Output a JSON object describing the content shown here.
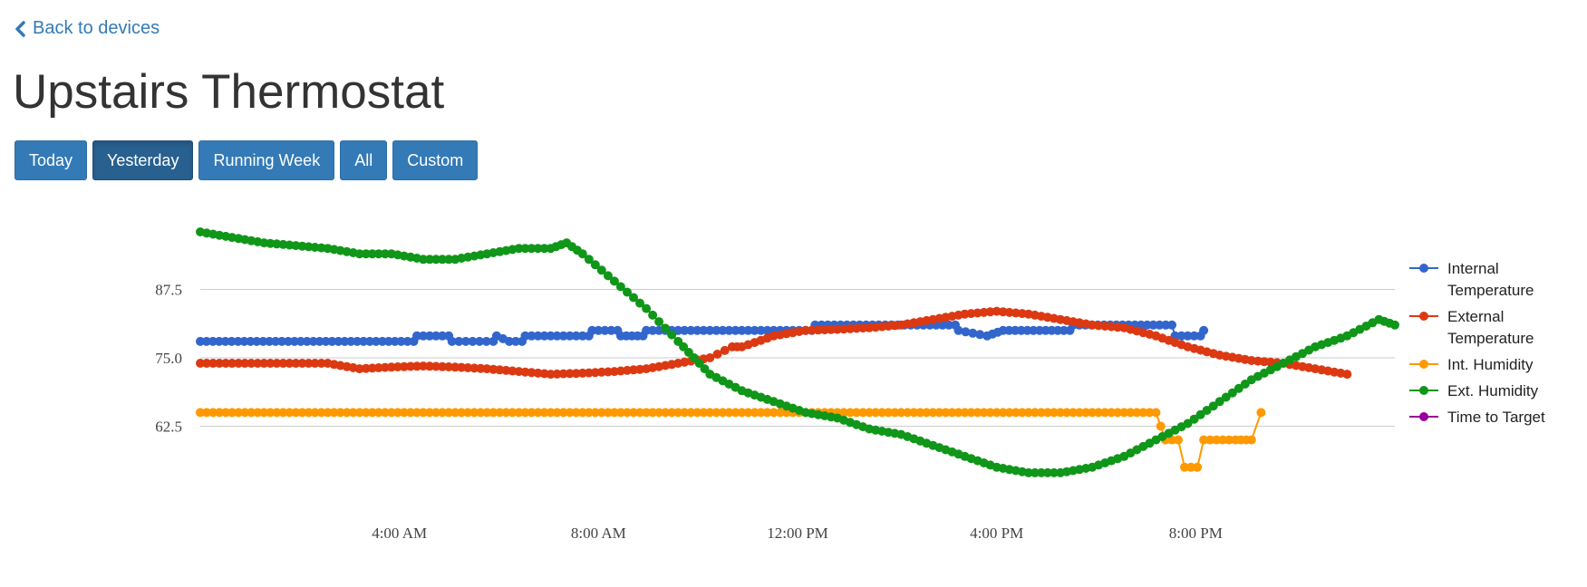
{
  "nav": {
    "back_label": "Back to devices"
  },
  "page": {
    "title": "Upstairs Thermostat"
  },
  "range_buttons": [
    {
      "label": "Today",
      "active": false
    },
    {
      "label": "Yesterday",
      "active": true
    },
    {
      "label": "Running Week",
      "active": false
    },
    {
      "label": "All",
      "active": false
    },
    {
      "label": "Custom",
      "active": false
    }
  ],
  "chart_data": {
    "type": "line",
    "title": "",
    "xlabel": "",
    "ylabel": "",
    "x_range_hours": [
      0,
      24
    ],
    "xticks": [
      {
        "hour": 4,
        "label": "4:00 AM"
      },
      {
        "hour": 8,
        "label": "8:00 AM"
      },
      {
        "hour": 12,
        "label": "12:00 PM"
      },
      {
        "hour": 16,
        "label": "4:00 PM"
      },
      {
        "hour": 20,
        "label": "8:00 PM"
      }
    ],
    "yticks": [
      {
        "value": 62.5,
        "label": "62.5"
      },
      {
        "value": 75,
        "label": "75.0"
      },
      {
        "value": 87.5,
        "label": "87.5"
      }
    ],
    "ylim": [
      51,
      99
    ],
    "grid": true,
    "legend_position": "right",
    "series": [
      {
        "name": "Internal Temperature",
        "color": "#3366cc",
        "points": [
          [
            0,
            78
          ],
          [
            6.7,
            78
          ],
          [
            6.8,
            79
          ],
          [
            7.8,
            79
          ],
          [
            7.9,
            78
          ],
          [
            9.2,
            78
          ],
          [
            9.3,
            79
          ],
          [
            9.7,
            78
          ],
          [
            10.1,
            78
          ],
          [
            10.2,
            79
          ],
          [
            12.2,
            79
          ],
          [
            12.3,
            80
          ],
          [
            13.1,
            80
          ],
          [
            13.2,
            79
          ],
          [
            13.9,
            79
          ],
          [
            14.0,
            80
          ],
          [
            19.2,
            80
          ],
          [
            19.3,
            81
          ],
          [
            23.7,
            81
          ],
          [
            23.8,
            80
          ],
          [
            24.7,
            79
          ],
          [
            25.2,
            80
          ],
          [
            27.3,
            80
          ],
          [
            27.4,
            81
          ],
          [
            30.5,
            81
          ],
          [
            30.6,
            79
          ],
          [
            31.4,
            79
          ],
          [
            31.5,
            80
          ]
        ]
      },
      {
        "name": "External Temperature",
        "color": "#dc3912",
        "points": [
          [
            0,
            74
          ],
          [
            4,
            74
          ],
          [
            5,
            73
          ],
          [
            6,
            73.3
          ],
          [
            7,
            73.5
          ],
          [
            8,
            73.3
          ],
          [
            9,
            73
          ],
          [
            10,
            72.5
          ],
          [
            11,
            72
          ],
          [
            12,
            72.2
          ],
          [
            13,
            72.5
          ],
          [
            14,
            73
          ],
          [
            15,
            74
          ],
          [
            16,
            75
          ],
          [
            16.7,
            77
          ],
          [
            17,
            77
          ],
          [
            18,
            79
          ],
          [
            19,
            80
          ],
          [
            20,
            80.2
          ],
          [
            21,
            80.5
          ],
          [
            22,
            81
          ],
          [
            23,
            82
          ],
          [
            24,
            83
          ],
          [
            25,
            83.5
          ],
          [
            26,
            83
          ],
          [
            27,
            82
          ],
          [
            28,
            81
          ],
          [
            29,
            80.5
          ],
          [
            30,
            79
          ],
          [
            31,
            77
          ],
          [
            32,
            75.5
          ],
          [
            33,
            74.5
          ],
          [
            34,
            74
          ],
          [
            35,
            73
          ],
          [
            36,
            72
          ]
        ]
      },
      {
        "name": "Int. Humidity",
        "color": "#ff9900",
        "points": [
          [
            0,
            65
          ],
          [
            30,
            65
          ],
          [
            30.3,
            60
          ],
          [
            30.7,
            60
          ],
          [
            30.9,
            55
          ],
          [
            31.3,
            55
          ],
          [
            31.5,
            60
          ],
          [
            32.5,
            60
          ],
          [
            33,
            60
          ],
          [
            33.3,
            65
          ]
        ]
      },
      {
        "name": "Ext. Humidity",
        "color": "#109618",
        "points": [
          [
            0,
            98
          ],
          [
            1,
            97
          ],
          [
            2,
            96
          ],
          [
            3,
            95.5
          ],
          [
            4,
            95
          ],
          [
            5,
            94
          ],
          [
            6,
            94
          ],
          [
            7,
            93
          ],
          [
            8,
            93
          ],
          [
            9,
            94
          ],
          [
            10,
            95
          ],
          [
            11,
            95
          ],
          [
            11.5,
            96
          ],
          [
            12,
            94
          ],
          [
            13,
            89
          ],
          [
            14,
            84
          ],
          [
            15,
            78
          ],
          [
            15.5,
            75
          ],
          [
            16,
            72
          ],
          [
            17,
            69
          ],
          [
            18,
            67
          ],
          [
            19,
            65
          ],
          [
            20,
            64
          ],
          [
            21,
            62
          ],
          [
            22,
            61
          ],
          [
            23,
            59
          ],
          [
            24,
            57
          ],
          [
            25,
            55
          ],
          [
            26,
            54
          ],
          [
            27,
            54
          ],
          [
            28,
            55
          ],
          [
            29,
            57
          ],
          [
            30,
            60
          ],
          [
            31,
            63
          ],
          [
            32,
            67
          ],
          [
            33,
            71
          ],
          [
            34,
            74
          ],
          [
            35,
            77
          ],
          [
            36,
            79
          ],
          [
            37,
            82
          ],
          [
            37.5,
            81
          ]
        ]
      },
      {
        "name": "Time to Target",
        "color": "#990099",
        "points": []
      }
    ]
  }
}
